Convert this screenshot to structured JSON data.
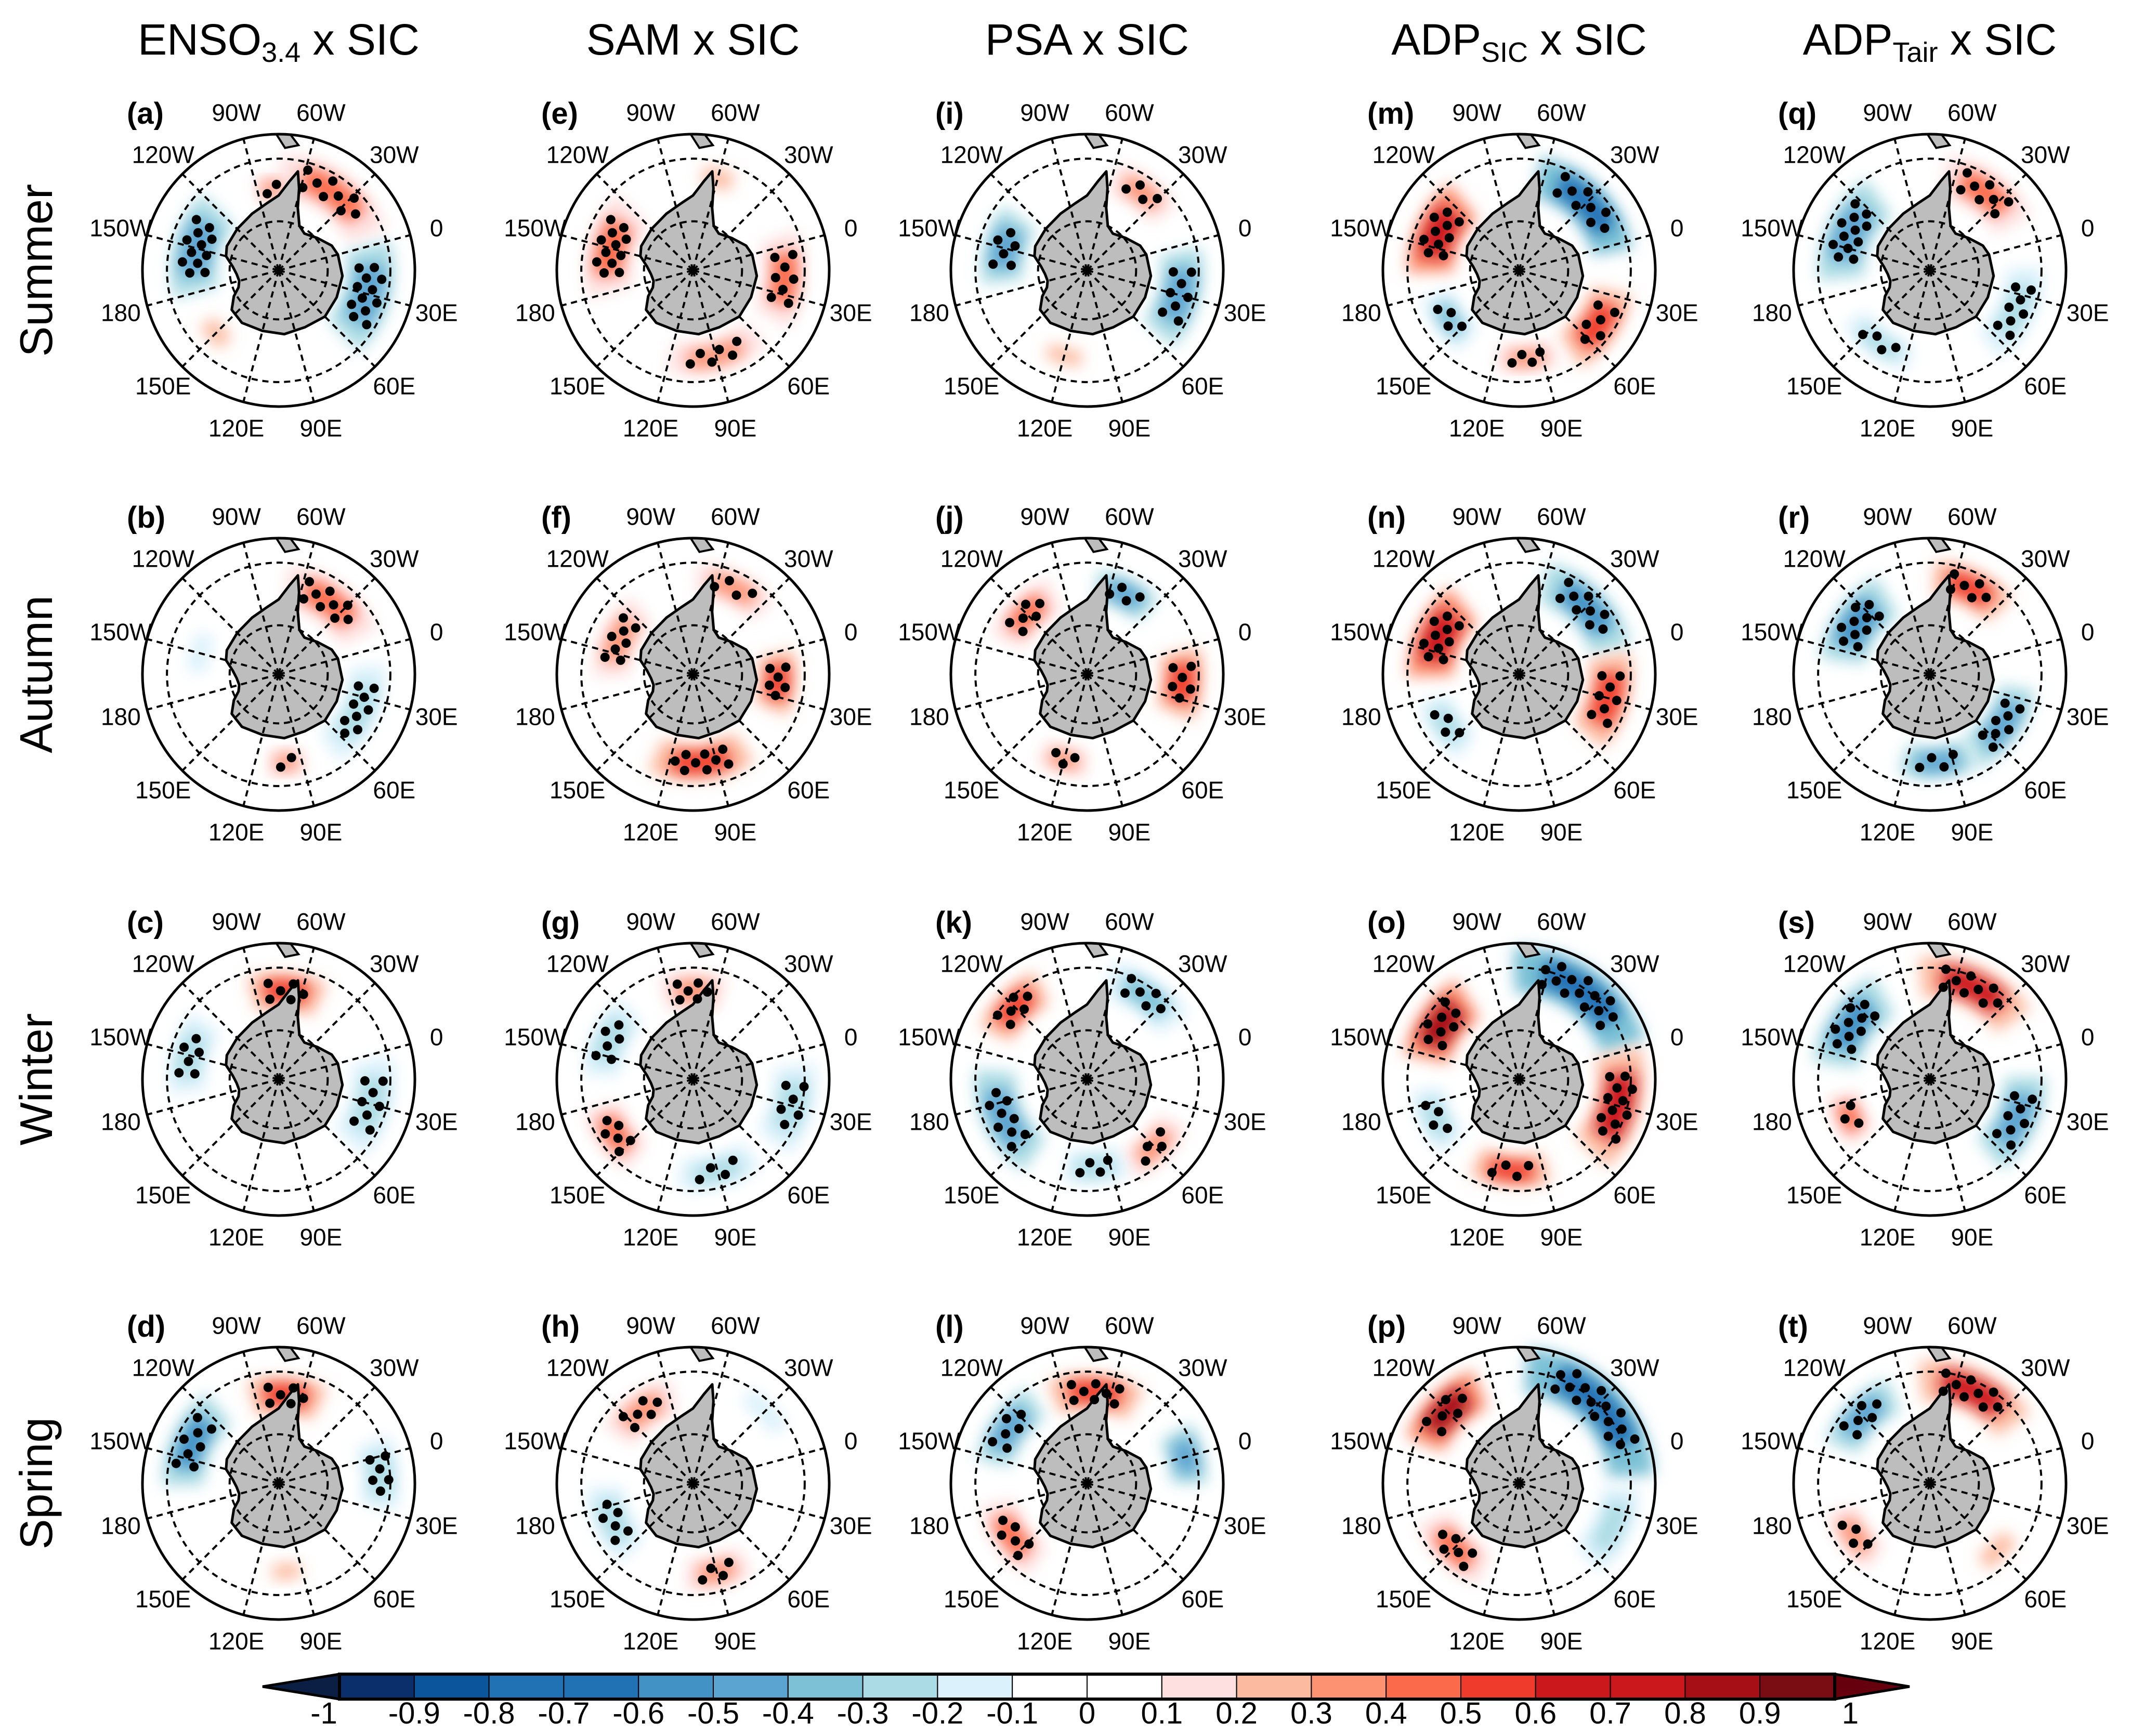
{
  "columns": [
    {
      "main": "ENSO",
      "sub": "3.4",
      "suffix": " x SIC",
      "panels": [
        {
          "letter": "(a)",
          "regions": [
            {
              "lon": -150,
              "lat": -65,
              "r": -0.5,
              "w": 40,
              "h": 9,
              "sig": true
            },
            {
              "lon": -40,
              "lat": -62,
              "r": 0.4,
              "w": 45,
              "h": 8,
              "sig": true
            },
            {
              "lon": 30,
              "lat": -63,
              "r": -0.5,
              "w": 40,
              "h": 9,
              "sig": true
            },
            {
              "lon": -80,
              "lat": -66,
              "r": 0.3,
              "w": 14,
              "h": 5,
              "sig": true
            },
            {
              "lon": 150,
              "lat": -64,
              "r": 0.2,
              "w": 20,
              "h": 6,
              "sig": false
            }
          ]
        },
        {
          "letter": "(b)",
          "regions": [
            {
              "lon": -40,
              "lat": -64,
              "r": 0.4,
              "w": 40,
              "h": 8,
              "sig": true
            },
            {
              "lon": 40,
              "lat": -64,
              "r": -0.3,
              "w": 40,
              "h": 7,
              "sig": true
            },
            {
              "lon": -150,
              "lat": -66,
              "r": -0.2,
              "w": 30,
              "h": 6,
              "sig": true
            },
            {
              "lon": 100,
              "lat": -64,
              "r": 0.3,
              "w": 15,
              "h": 5,
              "sig": true
            }
          ]
        },
        {
          "letter": "(c)",
          "regions": [
            {
              "lon": -70,
              "lat": -64,
              "r": 0.5,
              "w": 30,
              "h": 7,
              "sig": true
            },
            {
              "lon": -150,
              "lat": -63,
              "r": -0.3,
              "w": 30,
              "h": 7,
              "sig": true
            },
            {
              "lon": 30,
              "lat": -62,
              "r": -0.3,
              "w": 35,
              "h": 8,
              "sig": true
            }
          ]
        },
        {
          "letter": "(d)",
          "regions": [
            {
              "lon": -70,
              "lat": -64,
              "r": 0.5,
              "w": 30,
              "h": 7,
              "sig": true
            },
            {
              "lon": -140,
              "lat": -62,
              "r": -0.6,
              "w": 35,
              "h": 8,
              "sig": true
            },
            {
              "lon": 10,
              "lat": -60,
              "r": -0.3,
              "w": 25,
              "h": 7,
              "sig": true
            },
            {
              "lon": 100,
              "lat": -64,
              "r": 0.2,
              "w": 20,
              "h": 5,
              "sig": false
            }
          ]
        }
      ]
    },
    {
      "main": "SAM x SIC",
      "sub": "",
      "suffix": "",
      "panels": [
        {
          "letter": "(e)",
          "regions": [
            {
              "lon": -150,
              "lat": -65,
              "r": 0.4,
              "w": 40,
              "h": 9,
              "sig": true
            },
            {
              "lon": 20,
              "lat": -63,
              "r": 0.4,
              "w": 35,
              "h": 8,
              "sig": true
            },
            {
              "lon": 90,
              "lat": -64,
              "r": 0.3,
              "w": 40,
              "h": 6,
              "sig": true
            },
            {
              "lon": -60,
              "lat": -62,
              "r": 0.2,
              "w": 20,
              "h": 6,
              "sig": false
            }
          ]
        },
        {
          "letter": "(f)",
          "regions": [
            {
              "lon": 100,
              "lat": -64,
              "r": 0.5,
              "w": 40,
              "h": 7,
              "sig": true
            },
            {
              "lon": 20,
              "lat": -65,
              "r": 0.5,
              "w": 25,
              "h": 7,
              "sig": true
            },
            {
              "lon": -140,
              "lat": -66,
              "r": 0.3,
              "w": 35,
              "h": 7,
              "sig": true
            },
            {
              "lon": -50,
              "lat": -62,
              "r": 0.3,
              "w": 30,
              "h": 6,
              "sig": true
            }
          ]
        },
        {
          "letter": "(g)",
          "regions": [
            {
              "lon": -75,
              "lat": -64,
              "r": 0.3,
              "w": 25,
              "h": 7,
              "sig": true
            },
            {
              "lon": 30,
              "lat": -60,
              "r": -0.3,
              "w": 30,
              "h": 8,
              "sig": true
            },
            {
              "lon": 90,
              "lat": -62,
              "r": -0.3,
              "w": 30,
              "h": 6,
              "sig": true
            },
            {
              "lon": 160,
              "lat": -62,
              "r": 0.4,
              "w": 25,
              "h": 7,
              "sig": true
            },
            {
              "lon": -140,
              "lat": -63,
              "r": -0.3,
              "w": 30,
              "h": 7,
              "sig": true
            }
          ]
        },
        {
          "letter": "(h)",
          "regions": [
            {
              "lon": -110,
              "lat": -64,
              "r": 0.3,
              "w": 30,
              "h": 7,
              "sig": true
            },
            {
              "lon": 170,
              "lat": -64,
              "r": -0.3,
              "w": 30,
              "h": 7,
              "sig": true
            },
            {
              "lon": 90,
              "lat": -63,
              "r": 0.3,
              "w": 25,
              "h": 6,
              "sig": true
            },
            {
              "lon": -30,
              "lat": -60,
              "r": -0.2,
              "w": 30,
              "h": 6,
              "sig": true
            }
          ]
        }
      ]
    },
    {
      "main": "PSA x SIC",
      "sub": "",
      "suffix": "",
      "panels": [
        {
          "letter": "(i)",
          "regions": [
            {
              "lon": -150,
              "lat": -65,
              "r": -0.5,
              "w": 30,
              "h": 8,
              "sig": true
            },
            {
              "lon": 30,
              "lat": -62,
              "r": -0.5,
              "w": 35,
              "h": 8,
              "sig": true
            },
            {
              "lon": -40,
              "lat": -62,
              "r": 0.3,
              "w": 25,
              "h": 6,
              "sig": true
            },
            {
              "lon": 120,
              "lat": -64,
              "r": 0.2,
              "w": 25,
              "h": 5,
              "sig": false
            }
          ]
        },
        {
          "letter": "(j)",
          "regions": [
            {
              "lon": -50,
              "lat": -64,
              "r": -0.5,
              "w": 25,
              "h": 6,
              "sig": true
            },
            {
              "lon": 20,
              "lat": -62,
              "r": 0.5,
              "w": 25,
              "h": 8,
              "sig": true
            },
            {
              "lon": -120,
              "lat": -65,
              "r": 0.4,
              "w": 30,
              "h": 7,
              "sig": true
            },
            {
              "lon": 120,
              "lat": -64,
              "r": 0.3,
              "w": 20,
              "h": 5,
              "sig": true
            }
          ]
        },
        {
          "letter": "(k)",
          "regions": [
            {
              "lon": -120,
              "lat": -60,
              "r": 0.5,
              "w": 25,
              "h": 7,
              "sig": true
            },
            {
              "lon": 170,
              "lat": -63,
              "r": -0.5,
              "w": 40,
              "h": 8,
              "sig": true
            },
            {
              "lon": -40,
              "lat": -60,
              "r": -0.4,
              "w": 30,
              "h": 7,
              "sig": true
            },
            {
              "lon": 60,
              "lat": -62,
              "r": 0.3,
              "w": 25,
              "h": 6,
              "sig": true
            },
            {
              "lon": 100,
              "lat": -64,
              "r": -0.3,
              "w": 25,
              "h": 6,
              "sig": true
            }
          ]
        },
        {
          "letter": "(l)",
          "regions": [
            {
              "lon": -70,
              "lat": -63,
              "r": 0.5,
              "w": 35,
              "h": 7,
              "sig": true
            },
            {
              "lon": -130,
              "lat": -62,
              "r": -0.5,
              "w": 30,
              "h": 7,
              "sig": true
            },
            {
              "lon": 0,
              "lat": -60,
              "r": -0.5,
              "w": 20,
              "h": 7,
              "sig": false
            },
            {
              "lon": 160,
              "lat": -63,
              "r": 0.4,
              "w": 30,
              "h": 7,
              "sig": true
            }
          ]
        }
      ]
    },
    {
      "main": "ADP",
      "sub": "SIC",
      "suffix": " x SIC",
      "panels": [
        {
          "letter": "(m)",
          "regions": [
            {
              "lon": -140,
              "lat": -64,
              "r": 0.7,
              "w": 35,
              "h": 9,
              "sig": true
            },
            {
              "lon": -30,
              "lat": -62,
              "r": -0.7,
              "w": 45,
              "h": 8,
              "sig": true
            },
            {
              "lon": 50,
              "lat": -62,
              "r": 0.5,
              "w": 30,
              "h": 8,
              "sig": true
            },
            {
              "lon": 160,
              "lat": -65,
              "r": -0.4,
              "w": 25,
              "h": 6,
              "sig": true
            },
            {
              "lon": 100,
              "lat": -64,
              "r": 0.3,
              "w": 25,
              "h": 5,
              "sig": true
            }
          ]
        },
        {
          "letter": "(n)",
          "regions": [
            {
              "lon": -140,
              "lat": -64,
              "r": 0.7,
              "w": 35,
              "h": 9,
              "sig": true
            },
            {
              "lon": -30,
              "lat": -62,
              "r": -0.6,
              "w": 40,
              "h": 8,
              "sig": true
            },
            {
              "lon": 30,
              "lat": -63,
              "r": 0.5,
              "w": 35,
              "h": 8,
              "sig": true
            },
            {
              "lon": 160,
              "lat": -64,
              "r": -0.3,
              "w": 25,
              "h": 6,
              "sig": true
            }
          ]
        },
        {
          "letter": "(o)",
          "regions": [
            {
              "lon": -130,
              "lat": -62,
              "r": 0.8,
              "w": 30,
              "h": 9,
              "sig": true
            },
            {
              "lon": -40,
              "lat": -58,
              "r": -0.7,
              "w": 50,
              "h": 9,
              "sig": true
            },
            {
              "lon": 30,
              "lat": -60,
              "r": 0.6,
              "w": 40,
              "h": 9,
              "sig": true
            },
            {
              "lon": 110,
              "lat": -63,
              "r": 0.5,
              "w": 30,
              "h": 6,
              "sig": true
            },
            {
              "lon": 170,
              "lat": -63,
              "r": -0.3,
              "w": 25,
              "h": 6,
              "sig": true
            }
          ]
        },
        {
          "letter": "(p)",
          "regions": [
            {
              "lon": -120,
              "lat": -60,
              "r": 0.8,
              "w": 30,
              "h": 8,
              "sig": true
            },
            {
              "lon": -30,
              "lat": -57,
              "r": -0.8,
              "w": 55,
              "h": 9,
              "sig": true
            },
            {
              "lon": 150,
              "lat": -63,
              "r": 0.4,
              "w": 30,
              "h": 7,
              "sig": true
            },
            {
              "lon": 40,
              "lat": -60,
              "r": -0.3,
              "w": 30,
              "h": 7,
              "sig": false
            }
          ]
        }
      ]
    },
    {
      "main": "ADP",
      "sub": "Tair",
      "suffix": " x SIC",
      "panels": [
        {
          "letter": "(q)",
          "regions": [
            {
              "lon": -140,
              "lat": -64,
              "r": -0.5,
              "w": 40,
              "h": 9,
              "sig": true
            },
            {
              "lon": -40,
              "lat": -62,
              "r": 0.4,
              "w": 35,
              "h": 8,
              "sig": true
            },
            {
              "lon": 40,
              "lat": -62,
              "r": -0.3,
              "w": 35,
              "h": 7,
              "sig": true
            },
            {
              "lon": 140,
              "lat": -64,
              "r": -0.3,
              "w": 30,
              "h": 5,
              "sig": true
            }
          ]
        },
        {
          "letter": "(r)",
          "regions": [
            {
              "lon": -130,
              "lat": -64,
              "r": -0.6,
              "w": 35,
              "h": 9,
              "sig": true
            },
            {
              "lon": -50,
              "lat": -62,
              "r": 0.5,
              "w": 30,
              "h": 7,
              "sig": true
            },
            {
              "lon": 50,
              "lat": -64,
              "r": -0.5,
              "w": 35,
              "h": 7,
              "sig": true
            },
            {
              "lon": 100,
              "lat": -64,
              "r": -0.5,
              "w": 30,
              "h": 6,
              "sig": true
            }
          ]
        },
        {
          "letter": "(s)",
          "regions": [
            {
              "lon": -130,
              "lat": -62,
              "r": -0.6,
              "w": 35,
              "h": 9,
              "sig": true
            },
            {
              "lon": -50,
              "lat": -60,
              "r": 0.6,
              "w": 40,
              "h": 8,
              "sig": true
            },
            {
              "lon": 40,
              "lat": -62,
              "r": -0.5,
              "w": 35,
              "h": 8,
              "sig": true
            },
            {
              "lon": 170,
              "lat": -64,
              "r": 0.4,
              "w": 20,
              "h": 6,
              "sig": true
            }
          ]
        },
        {
          "letter": "(t)",
          "regions": [
            {
              "lon": -120,
              "lat": -62,
              "r": -0.5,
              "w": 30,
              "h": 7,
              "sig": true
            },
            {
              "lon": -50,
              "lat": -60,
              "r": 0.6,
              "w": 40,
              "h": 8,
              "sig": true
            },
            {
              "lon": 160,
              "lat": -63,
              "r": 0.3,
              "w": 25,
              "h": 6,
              "sig": true
            },
            {
              "lon": 60,
              "lat": -62,
              "r": 0.2,
              "w": 25,
              "h": 6,
              "sig": false
            }
          ]
        }
      ]
    }
  ],
  "rows": [
    "Summer",
    "Autumn",
    "Winter",
    "Spring"
  ],
  "lon_labels": [
    {
      "lon": -90,
      "text": "90W"
    },
    {
      "lon": -60,
      "text": "60W"
    },
    {
      "lon": -30,
      "text": "30W"
    },
    {
      "lon": 0,
      "text": "0"
    },
    {
      "lon": 30,
      "text": "30E"
    },
    {
      "lon": 60,
      "text": "60E"
    },
    {
      "lon": 90,
      "text": "90E"
    },
    {
      "lon": 120,
      "text": "120E"
    },
    {
      "lon": 150,
      "text": "150E"
    },
    {
      "lon": 180,
      "text": "180"
    },
    {
      "lon": -150,
      "text": "150W"
    },
    {
      "lon": -120,
      "text": "120W"
    }
  ],
  "colorbar": {
    "ticks": [
      "-1",
      "-0.9",
      "-0.8",
      "-0.7",
      "-0.6",
      "-0.5",
      "-0.4",
      "-0.3",
      "-0.2",
      "-0.1",
      "0",
      "0.1",
      "0.2",
      "0.3",
      "0.4",
      "0.5",
      "0.6",
      "0.7",
      "0.8",
      "0.9",
      "1"
    ],
    "colors": [
      "#0b2f6b",
      "#0a559c",
      "#2171b5",
      "#2171b5",
      "#4292c6",
      "#5ba3d0",
      "#7cc1d6",
      "#abdbe4",
      "#dbf1fb",
      "#ffffff",
      "#ffffff",
      "#fee0e0",
      "#fcbba1",
      "#fc9272",
      "#fb6a4a",
      "#ef3b2c",
      "#cb181d",
      "#cb181d",
      "#a50f15",
      "#7a0c13"
    ],
    "under_color": "#0b1f45",
    "over_color": "#67000d"
  },
  "land_color": "#bdbdbd"
}
